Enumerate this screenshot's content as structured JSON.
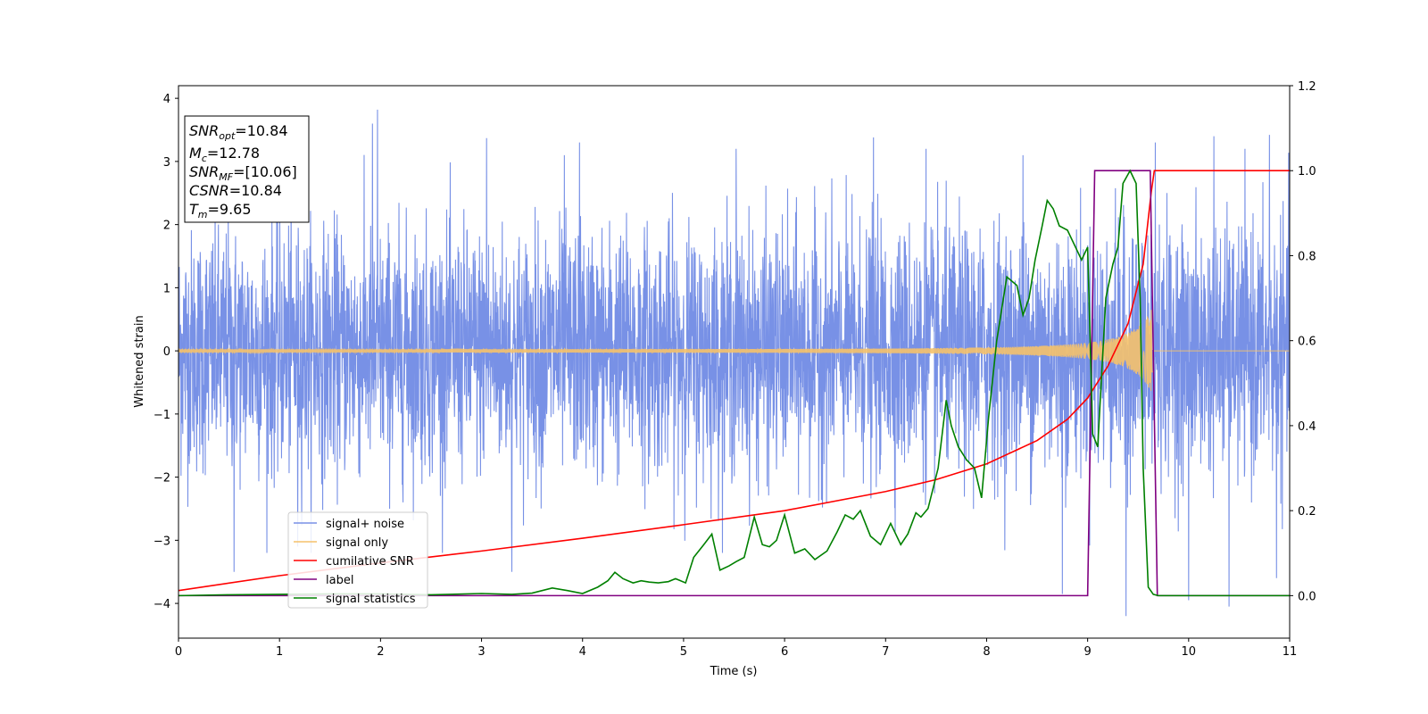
{
  "chart_data": {
    "type": "line",
    "title": "",
    "xlabel": "Time (s)",
    "ylabel": "Whitened strain",
    "xlim": [
      0,
      11
    ],
    "ylim": [
      -4.55,
      4.2
    ],
    "y2lim": [
      -0.1,
      1.2
    ],
    "grid": false,
    "legend_position": "lower-left",
    "x_ticks": [
      0,
      1,
      2,
      3,
      4,
      5,
      6,
      7,
      8,
      9,
      10,
      11
    ],
    "x_tick_labels": [
      "0",
      "1",
      "2",
      "3",
      "4",
      "5",
      "6",
      "7",
      "8",
      "9",
      "10",
      "11"
    ],
    "y_ticks": [
      4,
      3,
      2,
      1,
      0,
      -1,
      -2,
      -3,
      -4
    ],
    "y_tick_labels": [
      "4",
      "3",
      "2",
      "1",
      "0",
      "−1",
      "−2",
      "−3",
      "−4"
    ],
    "y2_ticks": [
      1.2,
      1.0,
      0.8,
      0.6,
      0.4,
      0.2,
      0.0
    ],
    "y2_tick_labels": [
      "1.2",
      "1.0",
      "0.8",
      "0.6",
      "0.4",
      "0.2",
      "0.0"
    ],
    "stats_box": [
      {
        "base": "SNR",
        "sub": "opt",
        "value": "=10.84"
      },
      {
        "base": "M",
        "sub": "c",
        "value": "=12.78"
      },
      {
        "base": "SNR",
        "sub": "MF",
        "value": "=[10.06]"
      },
      {
        "base": "CSNR",
        "sub": "",
        "value": "=10.84"
      },
      {
        "base": "T",
        "sub": "m",
        "value": "=9.65"
      }
    ],
    "series": [
      {
        "name": "signal+ noise",
        "axis": "left",
        "color": "#7891e6",
        "noise_sigma": 1.0,
        "spikes": [
          [
            0.55,
            -3.5
          ],
          [
            1.18,
            -3.1
          ],
          [
            1.97,
            3.82
          ],
          [
            1.92,
            3.6
          ],
          [
            3.05,
            3.37
          ],
          [
            3.3,
            -3.5
          ],
          [
            3.82,
            3.1
          ],
          [
            3.97,
            3.3
          ],
          [
            5.52,
            3.2
          ],
          [
            6.88,
            3.38
          ],
          [
            7.4,
            3.2
          ],
          [
            8.36,
            3.1
          ],
          [
            8.75,
            -3.85
          ],
          [
            9.38,
            -4.2
          ],
          [
            9.67,
            3.3
          ],
          [
            10.0,
            -3.95
          ],
          [
            10.25,
            3.4
          ],
          [
            10.4,
            -4.05
          ],
          [
            10.8,
            3.42
          ],
          [
            10.87,
            -3.6
          ]
        ]
      },
      {
        "name": "signal only",
        "axis": "left",
        "color": "#f5c26b",
        "chirp": {
          "t_merge": 9.65,
          "amp_at_start": 0.02,
          "amp_at_merge": 0.72,
          "freq_at_start": 15,
          "freq_at_merge": 250
        }
      },
      {
        "name": "cumilative SNR",
        "axis": "right",
        "color": "#ff0000",
        "x": [
          0,
          1,
          2,
          3,
          4,
          5,
          6,
          7,
          7.5,
          8,
          8.5,
          8.8,
          9,
          9.2,
          9.4,
          9.55,
          9.63,
          9.66,
          11
        ],
        "y": [
          0.012,
          0.047,
          0.077,
          0.105,
          0.135,
          0.167,
          0.2,
          0.245,
          0.273,
          0.31,
          0.365,
          0.415,
          0.465,
          0.54,
          0.64,
          0.78,
          0.95,
          1.0,
          1.0
        ]
      },
      {
        "name": "label",
        "axis": "right",
        "color": "#800080",
        "x": [
          0,
          9.0,
          9.07,
          9.62,
          9.69,
          11
        ],
        "y": [
          0.0,
          0.0,
          1.0,
          1.0,
          0.0,
          0.0
        ]
      },
      {
        "name": "signal statistics",
        "axis": "right",
        "color": "#008000",
        "x": [
          0,
          0.5,
          1.0,
          1.5,
          2.0,
          2.5,
          3.0,
          3.3,
          3.5,
          3.7,
          3.85,
          4.0,
          4.15,
          4.25,
          4.32,
          4.4,
          4.5,
          4.58,
          4.66,
          4.75,
          4.85,
          4.92,
          5.02,
          5.1,
          5.2,
          5.28,
          5.36,
          5.45,
          5.52,
          5.6,
          5.7,
          5.78,
          5.85,
          5.92,
          6.0,
          6.1,
          6.2,
          6.3,
          6.42,
          6.52,
          6.6,
          6.68,
          6.75,
          6.85,
          6.95,
          7.05,
          7.15,
          7.22,
          7.3,
          7.35,
          7.42,
          7.52,
          7.56,
          7.6,
          7.65,
          7.72,
          7.8,
          7.88,
          7.95,
          8.02,
          8.1,
          8.2,
          8.3,
          8.36,
          8.42,
          8.48,
          8.55,
          8.6,
          8.66,
          8.72,
          8.8,
          8.88,
          8.94,
          9.0,
          9.05,
          9.1,
          9.18,
          9.25,
          9.3,
          9.35,
          9.42,
          9.48,
          9.52,
          9.55,
          9.6,
          9.65,
          9.7,
          10.0,
          11.0
        ],
        "y": [
          0.0,
          0.002,
          0.003,
          0.004,
          0.004,
          0.002,
          0.005,
          0.003,
          0.006,
          0.018,
          0.012,
          0.005,
          0.02,
          0.035,
          0.055,
          0.04,
          0.03,
          0.035,
          0.032,
          0.03,
          0.033,
          0.04,
          0.03,
          0.09,
          0.12,
          0.145,
          0.06,
          0.07,
          0.08,
          0.09,
          0.185,
          0.12,
          0.115,
          0.13,
          0.19,
          0.1,
          0.11,
          0.085,
          0.105,
          0.15,
          0.19,
          0.18,
          0.2,
          0.14,
          0.12,
          0.17,
          0.12,
          0.145,
          0.195,
          0.185,
          0.205,
          0.3,
          0.38,
          0.46,
          0.4,
          0.35,
          0.32,
          0.3,
          0.23,
          0.42,
          0.6,
          0.75,
          0.73,
          0.66,
          0.7,
          0.79,
          0.87,
          0.93,
          0.91,
          0.87,
          0.86,
          0.82,
          0.79,
          0.82,
          0.38,
          0.35,
          0.7,
          0.78,
          0.82,
          0.97,
          1.0,
          0.97,
          0.7,
          0.3,
          0.02,
          0.003,
          0.0,
          0.0,
          0.0
        ]
      }
    ]
  }
}
